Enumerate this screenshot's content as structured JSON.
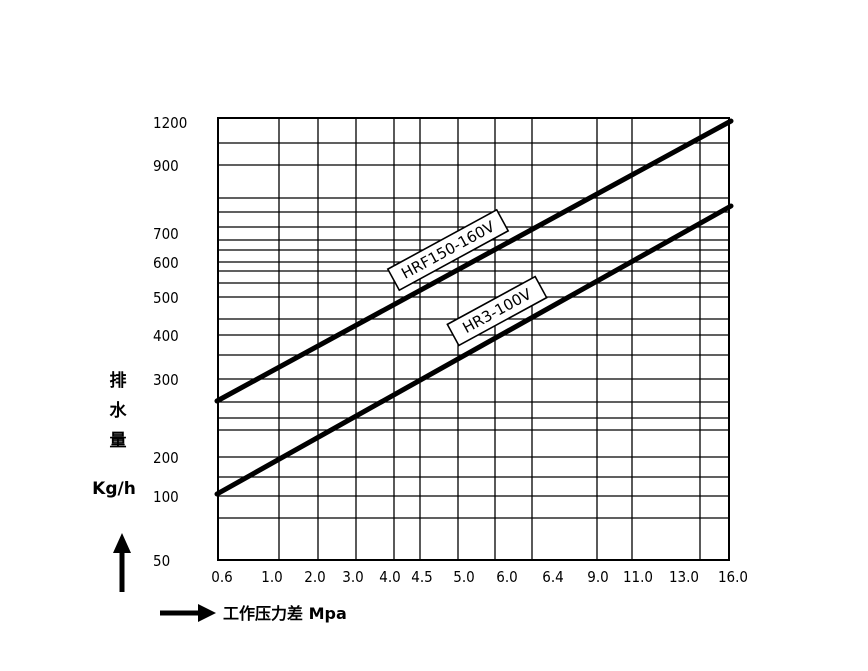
{
  "chart_data": {
    "type": "line",
    "x_ticks": [
      "0.6",
      "1.0",
      "2.0",
      "3.0",
      "4.0",
      "4.5",
      "5.0",
      "6.0",
      "6.4",
      "9.0",
      "11.0",
      "13.0",
      "16.0"
    ],
    "y_ticks": [
      "1200",
      "900",
      "700",
      "600",
      "500",
      "400",
      "300",
      "200",
      "100",
      "50"
    ],
    "ylabel_chars": [
      "排",
      "水",
      "量"
    ],
    "yunit": "Kg/h",
    "xlabel": "工作压力差 Mpa",
    "series": [
      {
        "name": "HRF150-160V",
        "x": [
          "0.6",
          "16.0"
        ],
        "y": [
          260,
          1200
        ]
      },
      {
        "name": "HR3-100V",
        "x": [
          "0.6",
          "16.0"
        ],
        "y": [
          100,
          700
        ]
      }
    ],
    "grid": true,
    "y_scale": "non-linear (tick positions as printed)"
  }
}
